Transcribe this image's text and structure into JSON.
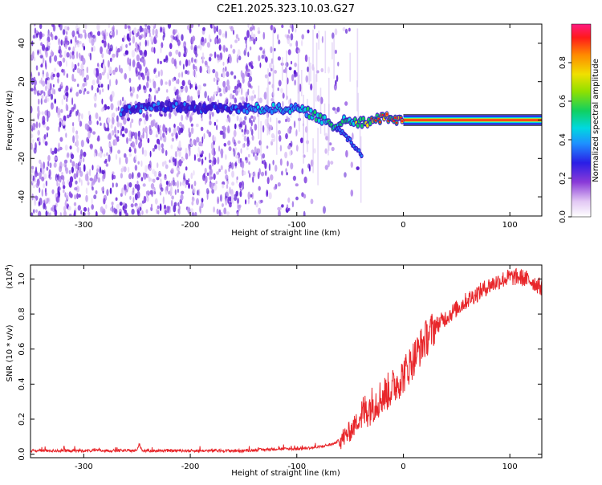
{
  "title": "C2E1.2025.323.10.03.G27",
  "chart_data": [
    {
      "type": "heatmap",
      "name": "spectrogram",
      "xlabel": "Height of straight line (km)",
      "ylabel": "Frequency (Hz)",
      "xlim": [
        -350,
        130
      ],
      "ylim": [
        -50,
        50
      ],
      "x_ticks": [
        -300,
        -200,
        -100,
        0,
        100
      ],
      "x_tick_labels": [
        "-300",
        "-200",
        "-100",
        "0",
        "100"
      ],
      "y_ticks": [
        -40,
        -20,
        0,
        20,
        40
      ],
      "y_tick_labels": [
        "-40",
        "-20",
        "0",
        "20",
        "40"
      ],
      "signal_track": {
        "x": [
          -265,
          -240,
          -210,
          -180,
          -150,
          -135,
          -120,
          -105,
          -95,
          -85,
          -78,
          -70,
          -62,
          -55,
          -48,
          -42,
          -35,
          -28,
          -20,
          -12,
          -5,
          0,
          130
        ],
        "y": [
          5,
          7,
          7,
          6,
          6,
          6,
          6,
          6,
          5,
          3,
          1,
          -2,
          -4,
          1,
          0,
          -1,
          -1,
          0,
          1,
          1,
          0,
          0,
          0
        ]
      },
      "branch_track": {
        "x": [
          -62,
          -55,
          -48,
          -42,
          -38
        ],
        "y": [
          -4,
          -8,
          -12,
          -16,
          -20
        ]
      },
      "colorbar": {
        "label": "Normalized spectral amplitude",
        "range": [
          0,
          1
        ],
        "ticks": [
          0.0,
          0.2,
          0.4,
          0.6,
          0.8
        ],
        "tick_labels": [
          "0.0",
          "0.2",
          "0.4",
          "0.6",
          "0.8"
        ]
      }
    },
    {
      "type": "line",
      "name": "snr",
      "xlabel": "Height of straight line (km)",
      "ylabel": "SNR (10 * v/v)",
      "scale_label": "(x10",
      "scale_exp": "4",
      "scale_close": ")",
      "xlim": [
        -350,
        130
      ],
      "ylim": [
        -0.02,
        1.08
      ],
      "x_ticks": [
        -300,
        -200,
        -100,
        0,
        100
      ],
      "x_tick_labels": [
        "-300",
        "-200",
        "-100",
        "0",
        "100"
      ],
      "y_ticks": [
        0.0,
        0.2,
        0.4,
        0.6,
        0.8,
        1.0
      ],
      "y_tick_labels": [
        "0.0",
        "0.2",
        "0.4",
        "0.6",
        "0.8",
        "1.0"
      ],
      "line_color": "#e8262a",
      "series": [
        {
          "name": "SNR",
          "x": [
            -350,
            -300,
            -250,
            -248,
            -245,
            -200,
            -150,
            -120,
            -100,
            -80,
            -65,
            -55,
            -50,
            -45,
            -40,
            -30,
            -20,
            -10,
            0,
            10,
            20,
            30,
            40,
            50,
            60,
            70,
            80,
            90,
            100,
            110,
            120,
            130
          ],
          "y": [
            0.02,
            0.02,
            0.02,
            0.06,
            0.02,
            0.02,
            0.02,
            0.03,
            0.03,
            0.04,
            0.06,
            0.1,
            0.13,
            0.17,
            0.22,
            0.28,
            0.33,
            0.38,
            0.45,
            0.55,
            0.65,
            0.73,
            0.78,
            0.83,
            0.88,
            0.92,
            0.96,
            0.99,
            1.01,
            1.01,
            0.99,
            0.95
          ]
        }
      ]
    }
  ]
}
